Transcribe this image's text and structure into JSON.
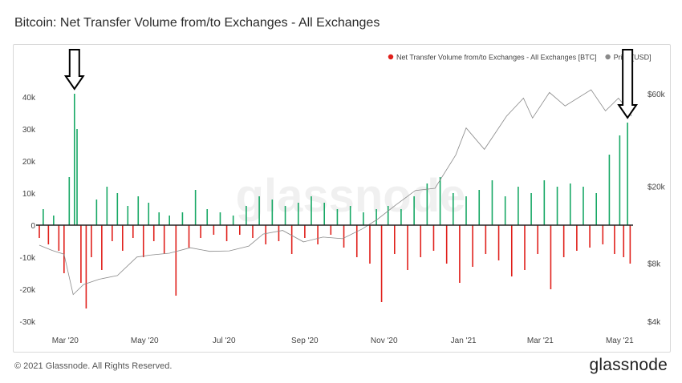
{
  "title": "Bitcoin: Net Transfer Volume from/to Exchanges - All Exchanges",
  "footer": "© 2021 Glassnode. All Rights Reserved.",
  "brand": "glassnode",
  "watermark": "glassnode",
  "colors": {
    "positive": "#17a865",
    "negative": "#e0201b",
    "price": "#8a8a8a",
    "zero": "#222222",
    "arrow": "#000000"
  },
  "chart_data": {
    "type": "bar",
    "legend": [
      {
        "label": "Net Transfer Volume from/to Exchanges - All Exchanges [BTC]",
        "color": "#e0201b"
      },
      {
        "label": "Price [USD]",
        "color": "#8a8a8a"
      }
    ],
    "legend_position": "top-right",
    "grid": false,
    "x_ticks": [
      "Mar '20",
      "May '20",
      "Jul '20",
      "Sep '20",
      "Nov '20",
      "Jan '21",
      "Mar '21",
      "May '21"
    ],
    "y_left": {
      "ticks": [
        "40k",
        "30k",
        "20k",
        "10k",
        "0",
        "-10k",
        "-20k",
        "-30k"
      ],
      "tick_values": [
        40000,
        30000,
        20000,
        10000,
        0,
        -10000,
        -20000,
        -30000
      ],
      "ylim": [
        -30000,
        45000
      ]
    },
    "y_right": {
      "scale": "log",
      "ticks": [
        "$60k",
        "$20k",
        "$8k",
        "$4k"
      ],
      "tick_values": [
        60000,
        20000,
        8000,
        4000
      ]
    },
    "x_range": [
      "2020-02-15",
      "2021-05-15"
    ],
    "series": [
      {
        "name": "Net Transfer Volume from/to Exchanges - All Exchanges [BTC]",
        "kind": "bar",
        "highlights": [
          {
            "date": "2020-03-13",
            "value": 41000
          },
          {
            "date": "2021-05-12",
            "value": 32000
          }
        ],
        "points": [
          [
            "2020-02-15",
            -4000
          ],
          [
            "2020-02-18",
            5000
          ],
          [
            "2020-02-22",
            -6000
          ],
          [
            "2020-02-26",
            3000
          ],
          [
            "2020-03-01",
            -8000
          ],
          [
            "2020-03-05",
            -15000
          ],
          [
            "2020-03-09",
            15000
          ],
          [
            "2020-03-13",
            41000
          ],
          [
            "2020-03-15",
            30000
          ],
          [
            "2020-03-18",
            -18000
          ],
          [
            "2020-03-22",
            -26000
          ],
          [
            "2020-03-26",
            -10000
          ],
          [
            "2020-03-30",
            8000
          ],
          [
            "2020-04-03",
            -14000
          ],
          [
            "2020-04-07",
            12000
          ],
          [
            "2020-04-11",
            -5000
          ],
          [
            "2020-04-15",
            10000
          ],
          [
            "2020-04-19",
            -8000
          ],
          [
            "2020-04-23",
            6000
          ],
          [
            "2020-04-27",
            -4000
          ],
          [
            "2020-05-01",
            9000
          ],
          [
            "2020-05-05",
            -10000
          ],
          [
            "2020-05-09",
            7000
          ],
          [
            "2020-05-13",
            -5000
          ],
          [
            "2020-05-17",
            4000
          ],
          [
            "2020-05-21",
            -9000
          ],
          [
            "2020-05-25",
            3000
          ],
          [
            "2020-05-30",
            -22000
          ],
          [
            "2020-06-04",
            4000
          ],
          [
            "2020-06-09",
            -7000
          ],
          [
            "2020-06-14",
            11000
          ],
          [
            "2020-06-18",
            -4000
          ],
          [
            "2020-06-23",
            5000
          ],
          [
            "2020-06-28",
            -3000
          ],
          [
            "2020-07-03",
            4000
          ],
          [
            "2020-07-08",
            -5000
          ],
          [
            "2020-07-13",
            3000
          ],
          [
            "2020-07-18",
            -3000
          ],
          [
            "2020-07-23",
            6000
          ],
          [
            "2020-07-28",
            -4000
          ],
          [
            "2020-08-02",
            9000
          ],
          [
            "2020-08-07",
            -6000
          ],
          [
            "2020-08-12",
            8000
          ],
          [
            "2020-08-17",
            -5000
          ],
          [
            "2020-08-22",
            6000
          ],
          [
            "2020-08-27",
            -9000
          ],
          [
            "2020-09-01",
            7000
          ],
          [
            "2020-09-06",
            -4000
          ],
          [
            "2020-09-11",
            9000
          ],
          [
            "2020-09-16",
            -6000
          ],
          [
            "2020-09-21",
            7000
          ],
          [
            "2020-09-26",
            -3000
          ],
          [
            "2020-10-01",
            5000
          ],
          [
            "2020-10-06",
            -7000
          ],
          [
            "2020-10-11",
            6000
          ],
          [
            "2020-10-16",
            -10000
          ],
          [
            "2020-10-21",
            4000
          ],
          [
            "2020-10-26",
            -12000
          ],
          [
            "2020-10-31",
            5000
          ],
          [
            "2020-11-04",
            -24000
          ],
          [
            "2020-11-09",
            6000
          ],
          [
            "2020-11-14",
            -9000
          ],
          [
            "2020-11-19",
            5000
          ],
          [
            "2020-11-24",
            -14000
          ],
          [
            "2020-11-29",
            9000
          ],
          [
            "2020-12-04",
            -10000
          ],
          [
            "2020-12-09",
            13000
          ],
          [
            "2020-12-14",
            -8000
          ],
          [
            "2020-12-19",
            15000
          ],
          [
            "2020-12-24",
            -12000
          ],
          [
            "2020-12-29",
            10000
          ],
          [
            "2021-01-03",
            -18000
          ],
          [
            "2021-01-08",
            9000
          ],
          [
            "2021-01-13",
            -13000
          ],
          [
            "2021-01-18",
            11000
          ],
          [
            "2021-01-23",
            -9000
          ],
          [
            "2021-01-28",
            14000
          ],
          [
            "2021-02-02",
            -11000
          ],
          [
            "2021-02-07",
            9000
          ],
          [
            "2021-02-12",
            -16000
          ],
          [
            "2021-02-17",
            12000
          ],
          [
            "2021-02-22",
            -14000
          ],
          [
            "2021-02-27",
            10000
          ],
          [
            "2021-03-04",
            -9000
          ],
          [
            "2021-03-09",
            14000
          ],
          [
            "2021-03-14",
            -20000
          ],
          [
            "2021-03-19",
            12000
          ],
          [
            "2021-03-24",
            -10000
          ],
          [
            "2021-03-29",
            13000
          ],
          [
            "2021-04-03",
            -8000
          ],
          [
            "2021-04-08",
            12000
          ],
          [
            "2021-04-13",
            -7000
          ],
          [
            "2021-04-18",
            10000
          ],
          [
            "2021-04-23",
            -6000
          ],
          [
            "2021-04-28",
            22000
          ],
          [
            "2021-05-02",
            -9000
          ],
          [
            "2021-05-06",
            28000
          ],
          [
            "2021-05-09",
            -10000
          ],
          [
            "2021-05-12",
            32000
          ],
          [
            "2021-05-14",
            -12000
          ]
        ]
      },
      {
        "name": "Price [USD]",
        "kind": "line",
        "points": [
          [
            "2020-02-15",
            9900
          ],
          [
            "2020-02-25",
            9300
          ],
          [
            "2020-03-05",
            8900
          ],
          [
            "2020-03-12",
            5500
          ],
          [
            "2020-03-20",
            6200
          ],
          [
            "2020-04-01",
            6600
          ],
          [
            "2020-04-15",
            6900
          ],
          [
            "2020-04-30",
            8600
          ],
          [
            "2020-05-10",
            8800
          ],
          [
            "2020-05-25",
            9000
          ],
          [
            "2020-06-10",
            9600
          ],
          [
            "2020-06-25",
            9200
          ],
          [
            "2020-07-10",
            9250
          ],
          [
            "2020-07-25",
            9800
          ],
          [
            "2020-08-05",
            11300
          ],
          [
            "2020-08-20",
            11800
          ],
          [
            "2020-09-05",
            10300
          ],
          [
            "2020-09-20",
            10900
          ],
          [
            "2020-10-05",
            10700
          ],
          [
            "2020-10-20",
            12000
          ],
          [
            "2020-11-01",
            13500
          ],
          [
            "2020-11-15",
            16000
          ],
          [
            "2020-11-30",
            19000
          ],
          [
            "2020-12-15",
            19500
          ],
          [
            "2020-12-31",
            29000
          ],
          [
            "2021-01-08",
            40000
          ],
          [
            "2021-01-22",
            31000
          ],
          [
            "2021-02-08",
            46000
          ],
          [
            "2021-02-21",
            57000
          ],
          [
            "2021-02-28",
            45000
          ],
          [
            "2021-03-13",
            61000
          ],
          [
            "2021-03-25",
            52000
          ],
          [
            "2021-04-14",
            63000
          ],
          [
            "2021-04-25",
            49000
          ],
          [
            "2021-05-05",
            57000
          ],
          [
            "2021-05-12",
            50000
          ],
          [
            "2021-05-15",
            46000
          ]
        ]
      }
    ]
  }
}
